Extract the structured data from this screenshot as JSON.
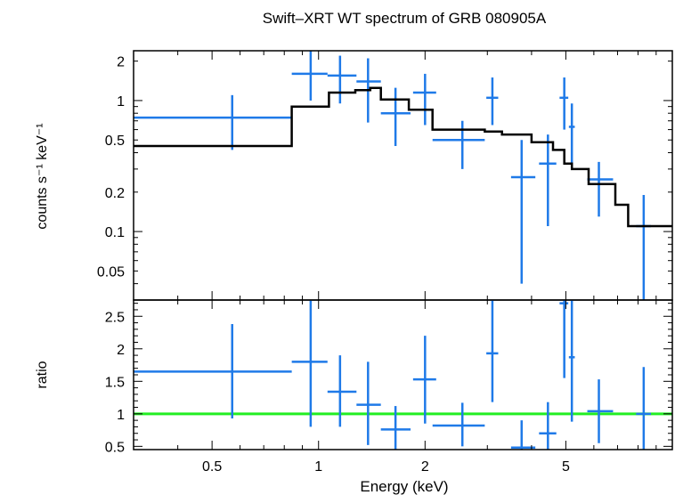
{
  "chart_data": [
    {
      "type": "scatter",
      "title": "Swift–XRT WT spectrum of GRB 080905A",
      "ylabel": "counts s⁻¹ keV⁻¹",
      "xscale": "log",
      "yscale": "log",
      "xlim": [
        0.3,
        10
      ],
      "ylim": [
        0.03,
        2.4
      ],
      "yticks": [
        {
          "value": 2,
          "label": "2"
        },
        {
          "value": 1,
          "label": "1"
        },
        {
          "value": 0.5,
          "label": "0.5"
        },
        {
          "value": 0.2,
          "label": "0.2"
        },
        {
          "value": 0.1,
          "label": "0.1"
        },
        {
          "value": 0.05,
          "label": "0.05"
        }
      ],
      "colors": {
        "data": "#1f7ae8",
        "model": "#000000"
      },
      "series": [
        {
          "kind": "data-with-errors",
          "points": [
            {
              "x": 0.57,
              "xlo": 0.3,
              "xhi": 0.84,
              "y": 0.74,
              "ylo": 0.42,
              "yhi": 1.1
            },
            {
              "x": 0.95,
              "xlo": 0.84,
              "xhi": 1.06,
              "y": 1.6,
              "ylo": 1.0,
              "yhi": 2.4
            },
            {
              "x": 1.15,
              "xlo": 1.06,
              "xhi": 1.28,
              "y": 1.55,
              "ylo": 0.95,
              "yhi": 2.2
            },
            {
              "x": 1.38,
              "xlo": 1.28,
              "xhi": 1.5,
              "y": 1.4,
              "ylo": 0.68,
              "yhi": 2.1
            },
            {
              "x": 1.65,
              "xlo": 1.5,
              "xhi": 1.82,
              "y": 0.8,
              "ylo": 0.45,
              "yhi": 1.25
            },
            {
              "x": 2.0,
              "xlo": 1.85,
              "xhi": 2.15,
              "y": 1.15,
              "ylo": 0.65,
              "yhi": 1.6
            },
            {
              "x": 2.55,
              "xlo": 2.1,
              "xhi": 2.95,
              "y": 0.5,
              "ylo": 0.3,
              "yhi": 0.7
            },
            {
              "x": 3.1,
              "xlo": 2.98,
              "xhi": 3.22,
              "y": 1.05,
              "ylo": 0.65,
              "yhi": 1.5
            },
            {
              "x": 3.75,
              "xlo": 3.5,
              "xhi": 4.1,
              "y": 0.26,
              "ylo": 0.04,
              "yhi": 0.5
            },
            {
              "x": 4.45,
              "xlo": 4.2,
              "xhi": 4.7,
              "y": 0.33,
              "ylo": 0.11,
              "yhi": 0.55
            },
            {
              "x": 4.95,
              "xlo": 4.8,
              "xhi": 5.08,
              "y": 1.05,
              "ylo": 0.6,
              "yhi": 1.5
            },
            {
              "x": 5.2,
              "xlo": 5.1,
              "xhi": 5.3,
              "y": 0.63,
              "ylo": 0.32,
              "yhi": 0.95
            },
            {
              "x": 6.2,
              "xlo": 5.75,
              "xhi": 6.8,
              "y": 0.25,
              "ylo": 0.13,
              "yhi": 0.34
            },
            {
              "x": 8.3,
              "xlo": 7.9,
              "xhi": 8.7,
              "y": 0.11,
              "ylo": 0.03,
              "yhi": 0.19
            }
          ]
        },
        {
          "kind": "model-step",
          "steps": [
            {
              "x0": 0.3,
              "x1": 0.84,
              "y": 0.45
            },
            {
              "x0": 0.84,
              "x1": 0.98,
              "y": 0.9
            },
            {
              "x0": 0.98,
              "x1": 1.07,
              "y": 0.9
            },
            {
              "x0": 1.07,
              "x1": 1.27,
              "y": 1.15
            },
            {
              "x0": 1.27,
              "x1": 1.4,
              "y": 1.2
            },
            {
              "x0": 1.4,
              "x1": 1.5,
              "y": 1.25
            },
            {
              "x0": 1.5,
              "x1": 1.8,
              "y": 1.02
            },
            {
              "x0": 1.8,
              "x1": 2.1,
              "y": 0.85
            },
            {
              "x0": 2.1,
              "x1": 2.95,
              "y": 0.6
            },
            {
              "x0": 2.95,
              "x1": 3.3,
              "y": 0.58
            },
            {
              "x0": 3.3,
              "x1": 4.0,
              "y": 0.55
            },
            {
              "x0": 4.0,
              "x1": 4.6,
              "y": 0.48
            },
            {
              "x0": 4.6,
              "x1": 4.95,
              "y": 0.42
            },
            {
              "x0": 4.95,
              "x1": 5.2,
              "y": 0.33
            },
            {
              "x0": 5.2,
              "x1": 5.8,
              "y": 0.3
            },
            {
              "x0": 5.8,
              "x1": 6.9,
              "y": 0.23
            },
            {
              "x0": 6.9,
              "x1": 7.5,
              "y": 0.16
            },
            {
              "x0": 7.5,
              "x1": 10,
              "y": 0.11
            }
          ]
        }
      ]
    },
    {
      "type": "scatter",
      "xlabel": "Energy (keV)",
      "ylabel": "ratio",
      "xscale": "log",
      "yscale": "linear",
      "xlim": [
        0.3,
        10
      ],
      "ylim": [
        0.45,
        2.75
      ],
      "xticks": [
        {
          "value": 0.5,
          "label": "0.5"
        },
        {
          "value": 1,
          "label": "1"
        },
        {
          "value": 2,
          "label": "2"
        },
        {
          "value": 5,
          "label": "5"
        }
      ],
      "yticks": [
        {
          "value": 2.5,
          "label": "2.5"
        },
        {
          "value": 2,
          "label": "2"
        },
        {
          "value": 1.5,
          "label": "1.5"
        },
        {
          "value": 1,
          "label": "1"
        },
        {
          "value": 0.5,
          "label": "0.5"
        }
      ],
      "reference_line": {
        "y": 1,
        "color": "#22ee22"
      },
      "colors": {
        "data": "#1f7ae8"
      },
      "series": [
        {
          "kind": "data-with-errors",
          "points": [
            {
              "x": 0.57,
              "xlo": 0.3,
              "xhi": 0.84,
              "y": 1.65,
              "ylo": 0.93,
              "yhi": 2.38
            },
            {
              "x": 0.95,
              "xlo": 0.84,
              "xhi": 1.06,
              "y": 1.8,
              "ylo": 0.8,
              "yhi": 2.75
            },
            {
              "x": 1.15,
              "xlo": 1.06,
              "xhi": 1.28,
              "y": 1.34,
              "ylo": 0.8,
              "yhi": 1.9
            },
            {
              "x": 1.38,
              "xlo": 1.28,
              "xhi": 1.5,
              "y": 1.14,
              "ylo": 0.52,
              "yhi": 1.8
            },
            {
              "x": 1.65,
              "xlo": 1.5,
              "xhi": 1.82,
              "y": 0.76,
              "ylo": 0.45,
              "yhi": 1.12
            },
            {
              "x": 2.0,
              "xlo": 1.85,
              "xhi": 2.15,
              "y": 1.53,
              "ylo": 0.85,
              "yhi": 2.2
            },
            {
              "x": 2.55,
              "xlo": 2.1,
              "xhi": 2.95,
              "y": 0.82,
              "ylo": 0.5,
              "yhi": 1.17
            },
            {
              "x": 3.1,
              "xlo": 2.98,
              "xhi": 3.22,
              "y": 1.93,
              "ylo": 1.18,
              "yhi": 2.75
            },
            {
              "x": 3.75,
              "xlo": 3.5,
              "xhi": 4.1,
              "y": 0.48,
              "ylo": 0.45,
              "yhi": 0.9
            },
            {
              "x": 4.45,
              "xlo": 4.2,
              "xhi": 4.7,
              "y": 0.7,
              "ylo": 0.45,
              "yhi": 1.18
            },
            {
              "x": 4.95,
              "xlo": 4.8,
              "xhi": 5.08,
              "y": 2.7,
              "ylo": 1.55,
              "yhi": 2.75
            },
            {
              "x": 5.2,
              "xlo": 5.1,
              "xhi": 5.3,
              "y": 1.87,
              "ylo": 0.88,
              "yhi": 2.75
            },
            {
              "x": 6.2,
              "xlo": 5.75,
              "xhi": 6.8,
              "y": 1.04,
              "ylo": 0.55,
              "yhi": 1.53
            },
            {
              "x": 8.3,
              "xlo": 7.9,
              "xhi": 8.7,
              "y": 1.0,
              "ylo": 0.45,
              "yhi": 1.72
            }
          ]
        }
      ]
    }
  ]
}
